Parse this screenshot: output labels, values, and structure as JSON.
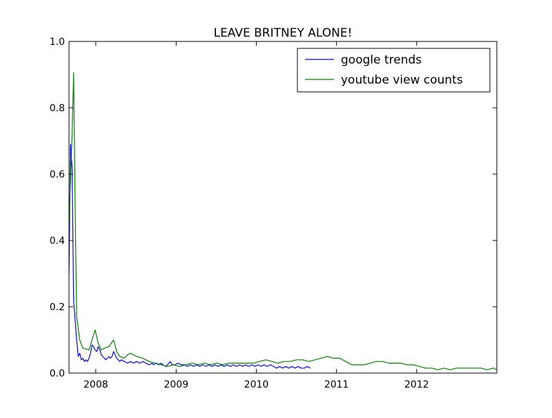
{
  "chart_data": {
    "type": "line",
    "title": "LEAVE BRITNEY ALONE!",
    "xlabel": "",
    "ylabel": "",
    "xlim": [
      "2007-09-01",
      "2012-12-31"
    ],
    "ylim": [
      0,
      1.0
    ],
    "x_ticks": [
      "2008",
      "2009",
      "2010",
      "2011",
      "2012"
    ],
    "y_ticks": [
      "0.0",
      "0.2",
      "0.4",
      "0.6",
      "0.8",
      "1.0"
    ],
    "grid": false,
    "legend_position": "top-right",
    "series": [
      {
        "name": "google trends",
        "color": "#0000ff",
        "points": [
          [
            "2007-09-01",
            0.3
          ],
          [
            "2007-09-08",
            0.69
          ],
          [
            "2007-09-15",
            0.62
          ],
          [
            "2007-09-22",
            0.22
          ],
          [
            "2007-09-29",
            0.16
          ],
          [
            "2007-10-06",
            0.1
          ],
          [
            "2007-10-13",
            0.05
          ],
          [
            "2007-10-20",
            0.06
          ],
          [
            "2007-10-27",
            0.04
          ],
          [
            "2007-11-03",
            0.045
          ],
          [
            "2007-11-10",
            0.035
          ],
          [
            "2007-11-17",
            0.04
          ],
          [
            "2007-11-24",
            0.035
          ],
          [
            "2007-12-01",
            0.045
          ],
          [
            "2007-12-08",
            0.06
          ],
          [
            "2007-12-15",
            0.085
          ],
          [
            "2007-12-22",
            0.08
          ],
          [
            "2007-12-29",
            0.07
          ],
          [
            "2008-01-05",
            0.065
          ],
          [
            "2008-01-12",
            0.08
          ],
          [
            "2008-01-19",
            0.07
          ],
          [
            "2008-01-26",
            0.055
          ],
          [
            "2008-02-02",
            0.05
          ],
          [
            "2008-02-09",
            0.045
          ],
          [
            "2008-02-16",
            0.04
          ],
          [
            "2008-02-23",
            0.045
          ],
          [
            "2008-03-01",
            0.05
          ],
          [
            "2008-03-08",
            0.045
          ],
          [
            "2008-03-15",
            0.05
          ],
          [
            "2008-03-22",
            0.065
          ],
          [
            "2008-03-29",
            0.055
          ],
          [
            "2008-04-05",
            0.045
          ],
          [
            "2008-04-12",
            0.04
          ],
          [
            "2008-04-19",
            0.035
          ],
          [
            "2008-04-26",
            0.04
          ],
          [
            "2008-05-10",
            0.035
          ],
          [
            "2008-05-24",
            0.03
          ],
          [
            "2008-06-07",
            0.035
          ],
          [
            "2008-06-21",
            0.03
          ],
          [
            "2008-07-05",
            0.035
          ],
          [
            "2008-07-19",
            0.03
          ],
          [
            "2008-08-02",
            0.035
          ],
          [
            "2008-08-16",
            0.03
          ],
          [
            "2008-08-30",
            0.025
          ],
          [
            "2008-09-13",
            0.03
          ],
          [
            "2008-09-20",
            0.025
          ],
          [
            "2008-10-04",
            0.03
          ],
          [
            "2008-10-11",
            0.025
          ],
          [
            "2008-10-25",
            0.03
          ],
          [
            "2008-11-01",
            0.025
          ],
          [
            "2008-11-15",
            0.02
          ],
          [
            "2008-11-22",
            0.025
          ],
          [
            "2008-12-06",
            0.035
          ],
          [
            "2008-12-13",
            0.025
          ],
          [
            "2008-12-27",
            0.025
          ],
          [
            "2009-01-10",
            0.03
          ],
          [
            "2009-01-24",
            0.025
          ],
          [
            "2009-02-07",
            0.025
          ],
          [
            "2009-02-21",
            0.02
          ],
          [
            "2009-03-07",
            0.025
          ],
          [
            "2009-03-21",
            0.02
          ],
          [
            "2009-04-04",
            0.025
          ],
          [
            "2009-04-18",
            0.02
          ],
          [
            "2009-05-02",
            0.025
          ],
          [
            "2009-05-16",
            0.02
          ],
          [
            "2009-05-30",
            0.025
          ],
          [
            "2009-06-13",
            0.02
          ],
          [
            "2009-06-27",
            0.025
          ],
          [
            "2009-07-11",
            0.02
          ],
          [
            "2009-07-25",
            0.025
          ],
          [
            "2009-08-08",
            0.02
          ],
          [
            "2009-08-22",
            0.025
          ],
          [
            "2009-09-05",
            0.02
          ],
          [
            "2009-09-19",
            0.025
          ],
          [
            "2009-10-03",
            0.02
          ],
          [
            "2009-10-17",
            0.025
          ],
          [
            "2009-10-31",
            0.02
          ],
          [
            "2009-11-14",
            0.025
          ],
          [
            "2009-11-28",
            0.02
          ],
          [
            "2009-12-12",
            0.025
          ],
          [
            "2009-12-26",
            0.02
          ],
          [
            "2010-01-09",
            0.025
          ],
          [
            "2010-01-23",
            0.02
          ],
          [
            "2010-02-06",
            0.025
          ],
          [
            "2010-02-20",
            0.02
          ],
          [
            "2010-03-06",
            0.025
          ],
          [
            "2010-03-20",
            0.02
          ],
          [
            "2010-04-03",
            0.015
          ],
          [
            "2010-04-17",
            0.02
          ],
          [
            "2010-05-01",
            0.015
          ],
          [
            "2010-05-15",
            0.02
          ],
          [
            "2010-05-29",
            0.015
          ],
          [
            "2010-06-12",
            0.02
          ],
          [
            "2010-06-26",
            0.015
          ],
          [
            "2010-07-10",
            0.02
          ],
          [
            "2010-07-24",
            0.015
          ],
          [
            "2010-08-07",
            0.015
          ],
          [
            "2010-08-21",
            0.02
          ],
          [
            "2010-09-04",
            0.015
          ]
        ]
      },
      {
        "name": "youtube view counts",
        "color": "#008000",
        "points": [
          [
            "2007-09-01",
            0.45
          ],
          [
            "2007-09-15",
            0.72
          ],
          [
            "2007-09-22",
            0.905
          ],
          [
            "2007-09-29",
            0.5
          ],
          [
            "2007-10-06",
            0.17
          ],
          [
            "2007-10-20",
            0.1
          ],
          [
            "2007-11-03",
            0.075
          ],
          [
            "2007-12-01",
            0.07
          ],
          [
            "2007-12-15",
            0.1
          ],
          [
            "2007-12-29",
            0.13
          ],
          [
            "2008-01-12",
            0.09
          ],
          [
            "2008-01-26",
            0.07
          ],
          [
            "2008-02-09",
            0.075
          ],
          [
            "2008-03-01",
            0.08
          ],
          [
            "2008-03-22",
            0.1
          ],
          [
            "2008-04-05",
            0.065
          ],
          [
            "2008-04-19",
            0.05
          ],
          [
            "2008-05-10",
            0.045
          ],
          [
            "2008-05-24",
            0.055
          ],
          [
            "2008-06-07",
            0.06
          ],
          [
            "2008-07-05",
            0.05
          ],
          [
            "2008-08-02",
            0.045
          ],
          [
            "2008-08-30",
            0.035
          ],
          [
            "2008-09-27",
            0.03
          ],
          [
            "2008-10-25",
            0.025
          ],
          [
            "2008-11-22",
            0.02
          ],
          [
            "2008-12-20",
            0.025
          ],
          [
            "2009-01-17",
            0.02
          ],
          [
            "2009-02-14",
            0.025
          ],
          [
            "2009-03-14",
            0.03
          ],
          [
            "2009-04-11",
            0.025
          ],
          [
            "2009-05-09",
            0.03
          ],
          [
            "2009-06-06",
            0.025
          ],
          [
            "2009-07-04",
            0.03
          ],
          [
            "2009-08-01",
            0.025
          ],
          [
            "2009-08-29",
            0.03
          ],
          [
            "2009-09-26",
            0.03
          ],
          [
            "2009-10-24",
            0.03
          ],
          [
            "2009-11-21",
            0.03
          ],
          [
            "2009-12-19",
            0.03
          ],
          [
            "2010-01-16",
            0.035
          ],
          [
            "2010-02-13",
            0.04
          ],
          [
            "2010-03-13",
            0.035
          ],
          [
            "2010-04-10",
            0.03
          ],
          [
            "2010-05-08",
            0.035
          ],
          [
            "2010-06-05",
            0.035
          ],
          [
            "2010-07-03",
            0.04
          ],
          [
            "2010-07-31",
            0.04
          ],
          [
            "2010-08-28",
            0.035
          ],
          [
            "2010-09-25",
            0.04
          ],
          [
            "2010-10-23",
            0.045
          ],
          [
            "2010-11-20",
            0.05
          ],
          [
            "2010-12-18",
            0.045
          ],
          [
            "2011-01-15",
            0.045
          ],
          [
            "2011-02-12",
            0.035
          ],
          [
            "2011-03-12",
            0.025
          ],
          [
            "2011-04-09",
            0.025
          ],
          [
            "2011-05-07",
            0.025
          ],
          [
            "2011-06-04",
            0.03
          ],
          [
            "2011-07-02",
            0.035
          ],
          [
            "2011-07-30",
            0.035
          ],
          [
            "2011-08-27",
            0.03
          ],
          [
            "2011-09-24",
            0.03
          ],
          [
            "2011-10-22",
            0.03
          ],
          [
            "2011-11-19",
            0.025
          ],
          [
            "2011-12-17",
            0.025
          ],
          [
            "2012-01-14",
            0.02
          ],
          [
            "2012-02-11",
            0.015
          ],
          [
            "2012-03-10",
            0.015
          ],
          [
            "2012-04-07",
            0.01
          ],
          [
            "2012-05-05",
            0.015
          ],
          [
            "2012-06-02",
            0.01
          ],
          [
            "2012-06-30",
            0.015
          ],
          [
            "2012-07-28",
            0.015
          ],
          [
            "2012-08-25",
            0.015
          ],
          [
            "2012-09-22",
            0.015
          ],
          [
            "2012-10-20",
            0.015
          ],
          [
            "2012-11-17",
            0.01
          ],
          [
            "2012-12-15",
            0.015
          ],
          [
            "2012-12-31",
            0.01
          ]
        ]
      }
    ]
  }
}
